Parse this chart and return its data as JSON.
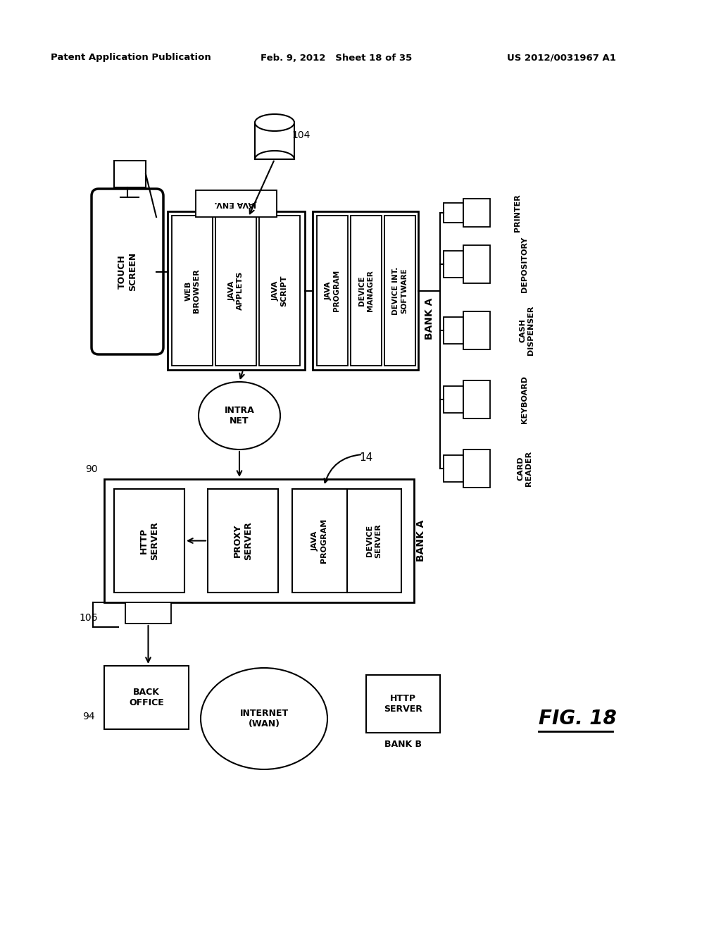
{
  "header_left": "Patent Application Publication",
  "header_mid": "Feb. 9, 2012   Sheet 18 of 35",
  "header_right": "US 2012/0031967 A1",
  "fig_label": "FIG. 18",
  "background_color": "#ffffff"
}
